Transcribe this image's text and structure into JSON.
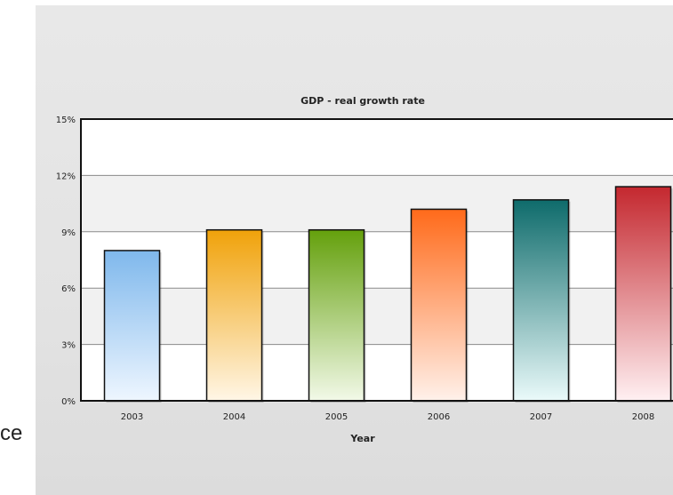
{
  "stray_text": "ce",
  "chart_data": {
    "type": "bar",
    "title": "GDP - real growth rate",
    "xlabel": "Year",
    "ylabel": "",
    "categories": [
      "2003",
      "2004",
      "2005",
      "2006",
      "2007",
      "2008"
    ],
    "values": [
      8.0,
      9.1,
      9.1,
      10.2,
      10.7,
      11.4
    ],
    "ylim": [
      0,
      15
    ],
    "yticks": [
      "0%",
      "3%",
      "6%",
      "9%",
      "12%",
      "15%"
    ],
    "grid": true,
    "legend": "none",
    "colors": [
      {
        "top": "#7fb8ec",
        "bottom": "#eef6ff"
      },
      {
        "top": "#f0a20a",
        "bottom": "#fff6e6"
      },
      {
        "top": "#64a00c",
        "bottom": "#f2f9e8"
      },
      {
        "top": "#ff6a1a",
        "bottom": "#fff1ea"
      },
      {
        "top": "#0e6b6b",
        "bottom": "#eafafa"
      },
      {
        "top": "#c4282f",
        "bottom": "#fff0f2"
      }
    ]
  }
}
